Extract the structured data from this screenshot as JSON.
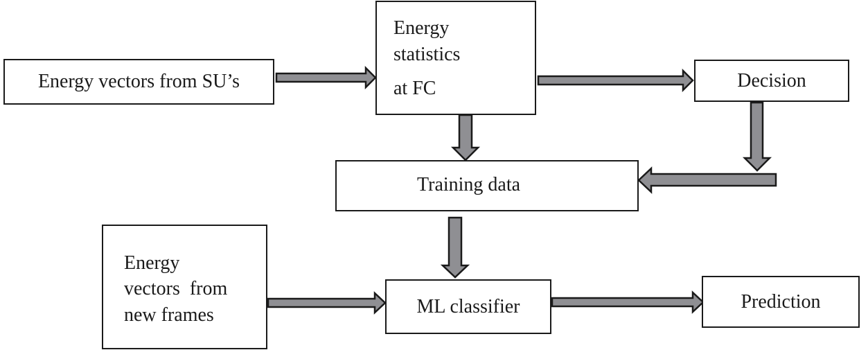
{
  "nodes": {
    "energy_vectors_su": "Energy vectors from SU’s",
    "energy_statistics": [
      "Energy",
      "statistics",
      "at FC"
    ],
    "decision": "Decision",
    "training_data": "Training data",
    "energy_vectors_new": [
      "Energy",
      "vectors  from",
      "new frames"
    ],
    "ml_classifier": "ML classifier",
    "prediction": "Prediction"
  },
  "edges": [
    {
      "from": "energy_vectors_su",
      "to": "energy_statistics"
    },
    {
      "from": "energy_statistics",
      "to": "decision"
    },
    {
      "from": "energy_statistics",
      "to": "training_data"
    },
    {
      "from": "decision",
      "to": "training_data"
    },
    {
      "from": "training_data",
      "to": "ml_classifier"
    },
    {
      "from": "energy_vectors_new",
      "to": "ml_classifier"
    },
    {
      "from": "ml_classifier",
      "to": "prediction"
    }
  ],
  "colors": {
    "arrow_fill": "#8f8f93",
    "outline": "#1a1a1a"
  }
}
